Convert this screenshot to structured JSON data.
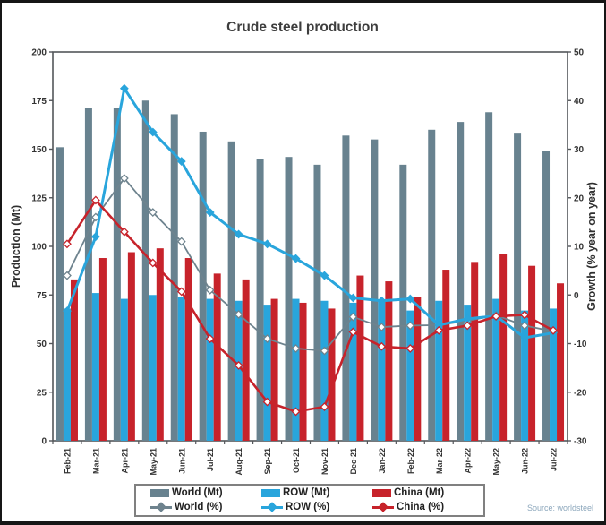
{
  "chart_data": {
    "type": "bar+line",
    "title": "Crude steel production",
    "categories": [
      "Feb-21",
      "Mar-21",
      "Apr-21",
      "May-21",
      "Jun-21",
      "Jul-21",
      "Aug-21",
      "Sep-21",
      "Oct-21",
      "Nov-21",
      "Dec-21",
      "Jan-22",
      "Feb-22",
      "Mar-22",
      "Apr-22",
      "May-22",
      "Jun-22",
      "Jul-22"
    ],
    "left_axis": {
      "label": "Production (Mt)",
      "min": 0,
      "max": 200,
      "step": 25
    },
    "right_axis": {
      "label": "Growth (% year on year)",
      "min": -30,
      "max": 50,
      "step": 10
    },
    "grid": false,
    "legend_position": "bottom",
    "bar_series": [
      {
        "name": "World (Mt)",
        "color": "#68828F",
        "values": [
          151,
          171,
          171,
          175,
          168,
          159,
          154,
          145,
          146,
          142,
          157,
          155,
          142,
          160,
          164,
          169,
          158,
          149
        ]
      },
      {
        "name": "ROW (Mt)",
        "color": "#29A5DC",
        "values": [
          68,
          76,
          73,
          75,
          74,
          73,
          72,
          70,
          73,
          72,
          71,
          72,
          67,
          72,
          70,
          73,
          67,
          68
        ]
      },
      {
        "name": "China (Mt)",
        "color": "#C7232B",
        "values": [
          83,
          94,
          97,
          99,
          94,
          86,
          83,
          73,
          71,
          68,
          85,
          82,
          74,
          88,
          92,
          96,
          90,
          81
        ]
      }
    ],
    "line_series": [
      {
        "name": "World (%)",
        "color": "#6E838E",
        "marker_fill": "#FFFFFF",
        "width": 1.8,
        "values": [
          4,
          16,
          24,
          17,
          11,
          1,
          -4,
          -9,
          -11,
          -11.5,
          -4.5,
          -6.6,
          -6.3,
          -6.2,
          -5.3,
          -4.2,
          -6.3,
          -7.5
        ]
      },
      {
        "name": "ROW (%)",
        "color": "#29A5DC",
        "marker_fill": "#29A5DC",
        "width": 3,
        "values": [
          -3.3,
          12,
          42.5,
          33.5,
          27.5,
          17,
          12.5,
          10.5,
          7.5,
          4,
          -0.6,
          -1.2,
          -0.8,
          -6.2,
          -4.9,
          -4.3,
          -8.8,
          -7.8
        ]
      },
      {
        "name": "China (%)",
        "color": "#C7232B",
        "marker_fill": "#FFFFFF",
        "width": 2.6,
        "values": [
          10.5,
          19.5,
          13,
          6.6,
          0.7,
          -9,
          -14.5,
          -22,
          -24,
          -23,
          -7.6,
          -10.6,
          -11,
          -7.3,
          -6.3,
          -4.4,
          -4.1,
          -7.3
        ]
      }
    ]
  },
  "legend": {
    "items": [
      {
        "label": "World (Mt)",
        "type": "bar",
        "color": "#68828F",
        "marker_fill": "#68828F"
      },
      {
        "label": "ROW (Mt)",
        "type": "bar",
        "color": "#29A5DC",
        "marker_fill": "#29A5DC"
      },
      {
        "label": "China (Mt)",
        "type": "bar",
        "color": "#C7232B",
        "marker_fill": "#C7232B"
      },
      {
        "label": "World (%)",
        "type": "line",
        "color": "#6E838E",
        "marker_fill": "#6E838E"
      },
      {
        "label": "ROW (%)",
        "type": "line",
        "color": "#29A5DC",
        "marker_fill": "#29A5DC"
      },
      {
        "label": "China (%)",
        "type": "line",
        "color": "#C7232B",
        "marker_fill": "#C7232B"
      }
    ]
  },
  "source_note": "Source: worldsteel"
}
